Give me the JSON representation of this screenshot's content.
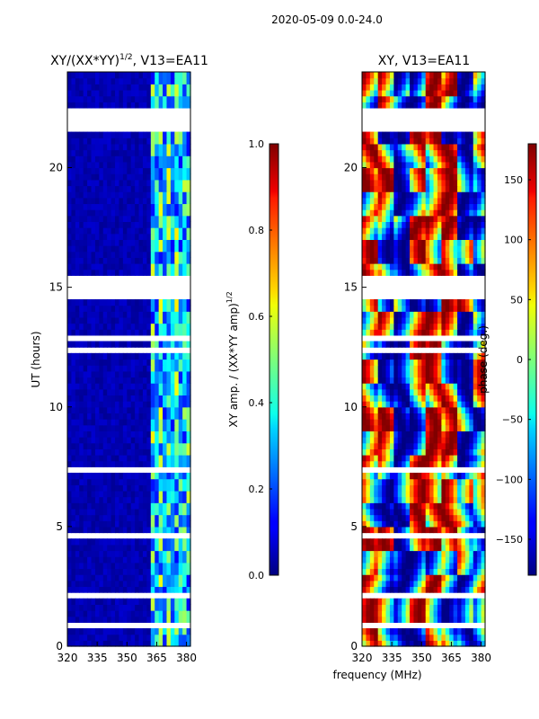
{
  "figure_title": "2020-05-09 0.0-24.0",
  "chart_data": [
    {
      "type": "heatmap",
      "title_main": "XY/(XX*YY)",
      "title_sup": "1/2",
      "title_rest": ", V13=EA11",
      "xlabel": "",
      "ylabel": "UT (hours)",
      "xlim": [
        320,
        382
      ],
      "ylim": [
        0,
        24
      ],
      "xticks": [
        320,
        335,
        350,
        365,
        380
      ],
      "yticks": [
        0,
        5,
        10,
        15,
        20
      ],
      "colormap": "jet",
      "colorbar": {
        "label_main": "XY amp. / (XX*YY amp)",
        "label_sup": "1/2",
        "range": [
          0.0,
          1.0
        ],
        "ticks": [
          "0.0",
          "0.2",
          "0.4",
          "0.6",
          "0.8",
          "1.0"
        ],
        "tick_values": [
          0.0,
          0.2,
          0.4,
          0.6,
          0.8,
          1.0
        ]
      },
      "high_band_start_mhz": 362,
      "gaps_hours": [
        [
          21.6,
          22.6
        ],
        [
          14.4,
          15.6
        ],
        [
          12.2,
          12.5
        ],
        [
          12.8,
          13.0
        ],
        [
          0.8,
          0.9
        ],
        [
          7.3,
          7.4
        ],
        [
          4.6,
          4.7
        ],
        [
          2.1,
          2.2
        ]
      ]
    },
    {
      "type": "heatmap",
      "title_main": "XY, V13=EA11",
      "xlabel": "frequency (MHz)",
      "ylabel": "",
      "xlim": [
        320,
        382
      ],
      "ylim": [
        0,
        24
      ],
      "xticks": [
        320,
        335,
        350,
        365,
        380
      ],
      "yticks": [
        0,
        5,
        10,
        15,
        20
      ],
      "colormap": "jet",
      "colorbar": {
        "label_main": "phase (deg.)",
        "range": [
          -180,
          180
        ],
        "ticks": [
          "−150",
          "−100",
          "−50",
          "0",
          "50",
          "100",
          "150"
        ],
        "tick_values": [
          -150,
          -100,
          -50,
          0,
          50,
          100,
          150
        ]
      },
      "gaps_hours": [
        [
          21.6,
          22.6
        ],
        [
          14.4,
          15.6
        ],
        [
          12.2,
          12.5
        ],
        [
          12.8,
          13.0
        ],
        [
          0.8,
          0.9
        ],
        [
          7.3,
          7.4
        ],
        [
          4.6,
          4.7
        ],
        [
          2.1,
          2.2
        ]
      ]
    }
  ]
}
